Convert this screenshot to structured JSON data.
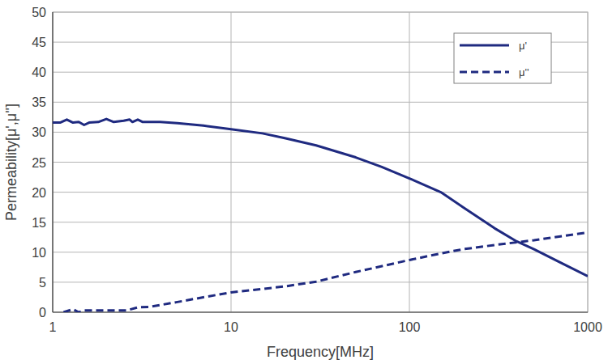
{
  "chart_data": {
    "type": "line",
    "x_label": "Frequency[MHz]",
    "y_label": "Permeability[μ',μ'']",
    "log": "x",
    "grid": true,
    "legend": "top-right",
    "xlim": [
      1,
      1000
    ],
    "xticks": [
      1,
      10,
      100,
      1000
    ],
    "ylim": [
      0,
      50
    ],
    "yticks": [
      0,
      5,
      10,
      15,
      20,
      25,
      30,
      35,
      40,
      45,
      50
    ],
    "series": [
      {
        "name": "μ'",
        "color": "#1f2a80",
        "line_style": "solid",
        "x": [
          1,
          1.1,
          1.2,
          1.3,
          1.4,
          1.5,
          1.6,
          1.8,
          2.0,
          2.2,
          2.5,
          2.7,
          2.8,
          3,
          3.2,
          4,
          5,
          7,
          10,
          15,
          20,
          30,
          50,
          70,
          100,
          150,
          200,
          300,
          400,
          500,
          700,
          1000
        ],
        "values": [
          31.6,
          31.6,
          32.1,
          31.6,
          31.7,
          31.2,
          31.6,
          31.7,
          32.2,
          31.7,
          31.9,
          32.1,
          31.7,
          32.1,
          31.7,
          31.7,
          31.5,
          31.1,
          30.5,
          29.8,
          29.0,
          27.8,
          25.8,
          24.2,
          22.3,
          20.0,
          17.5,
          14.0,
          11.8,
          10.5,
          8.3,
          6.0
        ]
      },
      {
        "name": "μ''",
        "color": "#1f2a80",
        "line_style": "dashed",
        "x": [
          1.15,
          1.3,
          1.4,
          1.5,
          2,
          2.6,
          3,
          3.5,
          5,
          7,
          10,
          20,
          30,
          50,
          100,
          150,
          200,
          300,
          500,
          1000
        ],
        "values": [
          0,
          0.5,
          0,
          0.3,
          0.3,
          0.3,
          0.8,
          0.9,
          1.7,
          2.5,
          3.3,
          4.3,
          5.1,
          6.7,
          8.7,
          9.8,
          10.5,
          11.2,
          12.0,
          13.3
        ]
      }
    ]
  }
}
